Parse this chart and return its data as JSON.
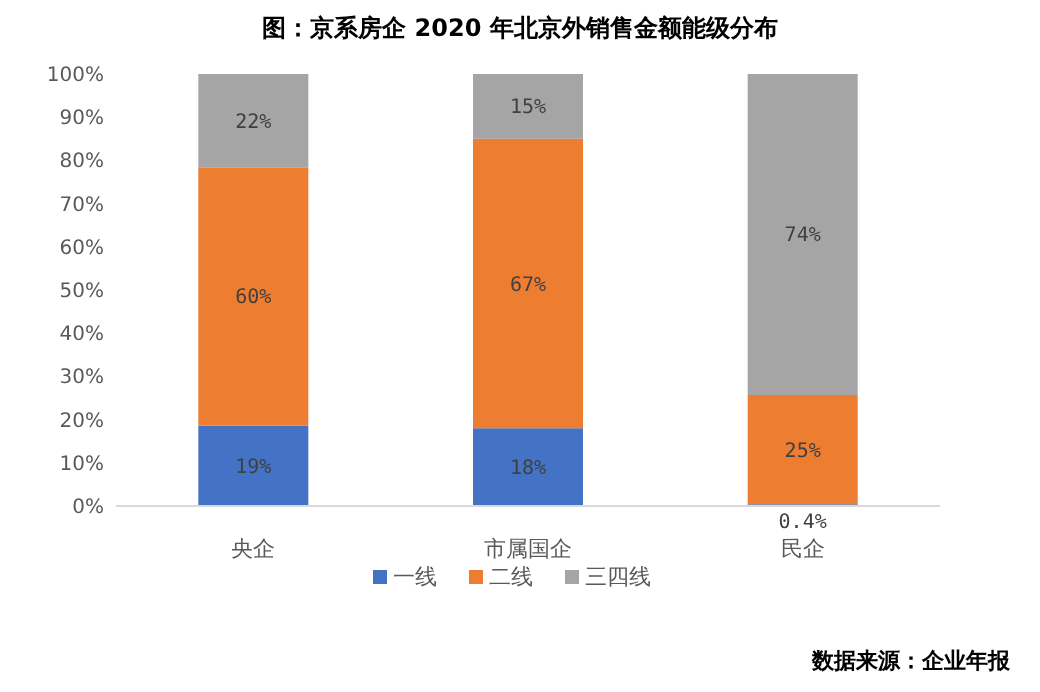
{
  "chart_data": {
    "type": "bar",
    "stacked": true,
    "title": "图：京系房企 2020 年北京外销售金额能级分布",
    "categories": [
      "央企",
      "市属国企",
      "民企"
    ],
    "series": [
      {
        "name": "一线",
        "color": "#4472c4",
        "values": [
          18.6,
          18,
          0.4
        ],
        "value_labels": [
          "19%",
          "18%",
          "0.4%"
        ]
      },
      {
        "name": "二线",
        "color": "#ed7d31",
        "values": [
          59.8,
          67,
          25.3
        ],
        "value_labels": [
          "60%",
          "67%",
          "25%"
        ]
      },
      {
        "name": "三四线",
        "color": "#a5a5a5",
        "values": [
          21.6,
          15,
          74.3
        ],
        "value_labels": [
          "22%",
          "15%",
          "74%"
        ]
      }
    ],
    "ylim": [
      0,
      100
    ],
    "yticks": [
      {
        "value": 0,
        "label": "0%"
      },
      {
        "value": 10,
        "label": "10%"
      },
      {
        "value": 20,
        "label": "20%"
      },
      {
        "value": 30,
        "label": "30%"
      },
      {
        "value": 40,
        "label": "40%"
      },
      {
        "value": 50,
        "label": "50%"
      },
      {
        "value": 60,
        "label": "60%"
      },
      {
        "value": 70,
        "label": "70%"
      },
      {
        "value": 80,
        "label": "80%"
      },
      {
        "value": 90,
        "label": "90%"
      },
      {
        "value": 100,
        "label": "100%"
      }
    ],
    "legend": "bottom",
    "annotations": [
      "数据来源：企业年报"
    ]
  }
}
